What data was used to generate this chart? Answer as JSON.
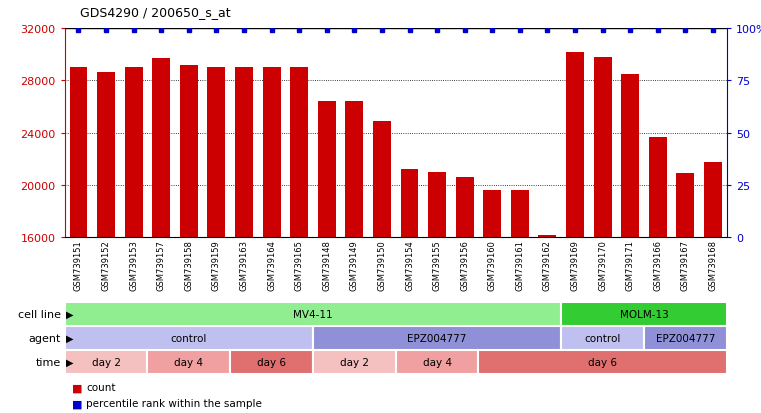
{
  "title": "GDS4290 / 200650_s_at",
  "samples": [
    "GSM739151",
    "GSM739152",
    "GSM739153",
    "GSM739157",
    "GSM739158",
    "GSM739159",
    "GSM739163",
    "GSM739164",
    "GSM739165",
    "GSM739148",
    "GSM739149",
    "GSM739150",
    "GSM739154",
    "GSM739155",
    "GSM739156",
    "GSM739160",
    "GSM739161",
    "GSM739162",
    "GSM739169",
    "GSM739170",
    "GSM739171",
    "GSM739166",
    "GSM739167",
    "GSM739168"
  ],
  "counts": [
    29000,
    28600,
    29000,
    29700,
    29200,
    29000,
    29000,
    29000,
    29000,
    26400,
    26400,
    24900,
    21200,
    21000,
    20600,
    19600,
    19600,
    16200,
    30200,
    29800,
    28500,
    23700,
    20900,
    21800
  ],
  "ylim_left": [
    16000,
    32000
  ],
  "yticks_left": [
    16000,
    20000,
    24000,
    28000,
    32000
  ],
  "yticks_right": [
    0,
    25,
    50,
    75,
    100
  ],
  "bar_color": "#cc0000",
  "dot_color": "#0000cc",
  "cell_line_mv411_color": "#90ee90",
  "cell_line_molm13_color": "#33cc33",
  "agent_color_control": "#c0c0f0",
  "agent_color_epz": "#9090d8",
  "time_color_day2": "#f5c0c0",
  "time_color_day4": "#f0a0a0",
  "time_color_day6": "#e07070",
  "background_color": "#ffffff",
  "tick_label_color_left": "#cc0000",
  "tick_label_color_right": "#0000cc",
  "grid_yticks": [
    20000,
    24000,
    28000
  ]
}
